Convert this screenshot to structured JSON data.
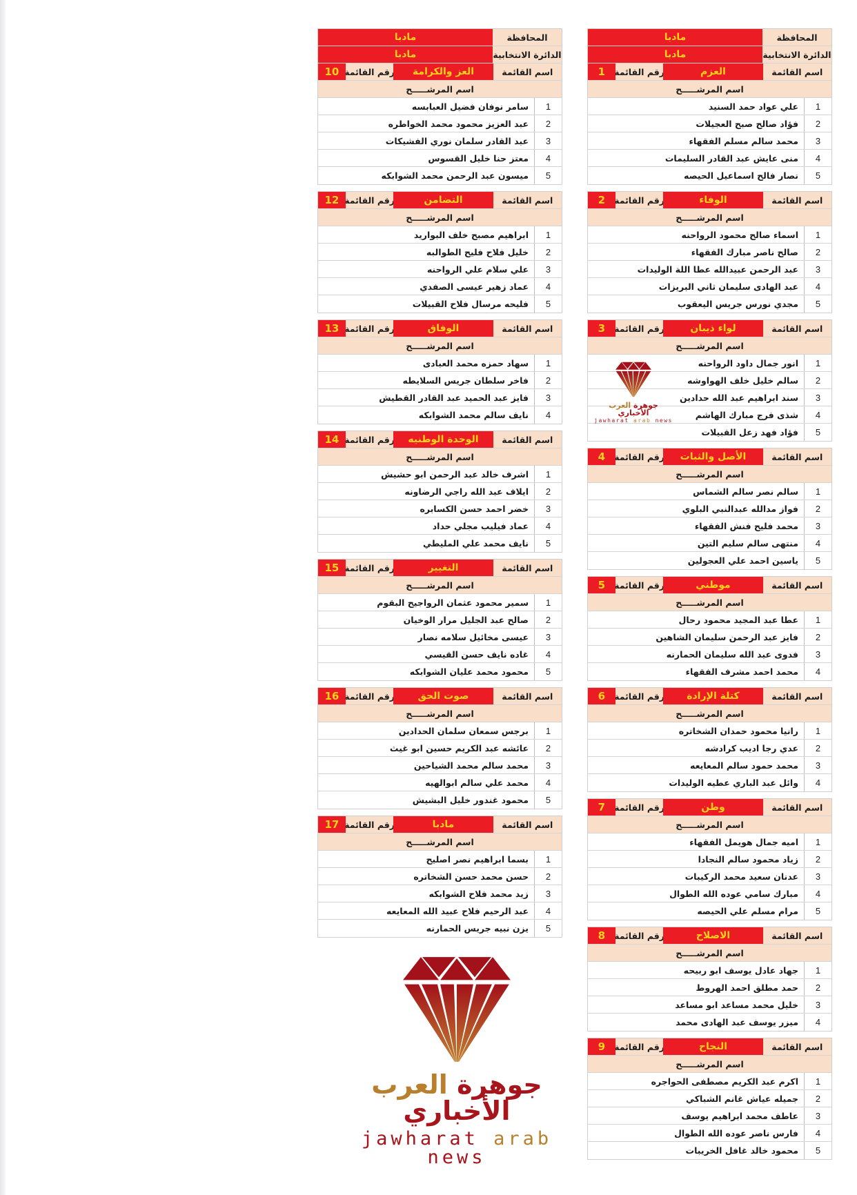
{
  "labels": {
    "province_label": "المحافظة",
    "district_label": "الدائرة الانتخابية",
    "list_name_label": "اسم القائمة",
    "list_number_label": "رقم القائمة",
    "candidate_header": "اسم المرشـــــح"
  },
  "province": "مادبا",
  "district": "مادبا",
  "colors": {
    "header_red": "#ec1c24",
    "header_text_yellow": "#ffd21a",
    "label_beige": "#f9dfc9",
    "logo_red": "#a8141b",
    "logo_gold": "#b8802c"
  },
  "logo": {
    "arabic_part1": "جوهرة",
    "arabic_part2": "العرب",
    "arabic_part3": "الأخباري",
    "english_part1": "jawharat",
    "english_part2": "arab",
    "english_part3": "news",
    "icon": "diamond-icon"
  },
  "right_column": [
    {
      "number": "1",
      "name": "العزم",
      "show_province": true,
      "candidates": [
        "علي عواد حمد السنيد",
        "فؤاد صالح صبح العجيلات",
        "محمد سالم مسلم الفقهاء",
        "منى عايش عبد القادر السليمات",
        "نصار فالح اسماعيل الحيصه"
      ]
    },
    {
      "number": "2",
      "name": "الوفاء",
      "candidates": [
        "اسماء صالح محمود الرواحنه",
        "صالح ناصر مبارك الفقهاء",
        "عبد الرحمن عبيدالله عطا اللة الوليدات",
        "عبد الهادى سليمان ثاني البريزات",
        "مجدي نورس جريس اليعقوب"
      ]
    },
    {
      "number": "3",
      "name": "لواء ذيبان",
      "candidates": [
        "انور جمال داود الرواحنه",
        "سالم خليل خلف الهواوشه",
        "سند ابراهيم عبد الله حدادين",
        "شذى فرج مبارك الهاشم",
        "فؤاد فهد زعل القبيلات"
      ]
    },
    {
      "number": "4",
      "name": "الأصل والثبات",
      "candidates": [
        "سالم نصر سالم الشماس",
        "فواز مدالله عبدالنبي البلوي",
        "محمد فليح فنش الفقهاء",
        "منتهى سالم سليم التين",
        "ياسين احمد علي العجولين"
      ]
    },
    {
      "number": "5",
      "name": "موطني",
      "candidates": [
        "عطا عبد المجيد محمود رحال",
        "فايز عبد الرحمن سليمان الشاهين",
        "فدوى عبد الله سليمان الحمارنه",
        "محمد احمد مشرف الفقهاء"
      ]
    },
    {
      "number": "6",
      "name": "كتلة الإرادة",
      "candidates": [
        "رانيا محمود حمدان الشخاتره",
        "عدي رجا اديب كرادشه",
        "محمد حمود سالم المعايعه",
        "وائل عبد الباري عطيه الوليدات"
      ]
    },
    {
      "number": "7",
      "name": "وطن",
      "candidates": [
        "اميه جمال هويمل الفقهاء",
        "زياد محمود سالم النجادا",
        "عدنان سعيد محمد الركيبات",
        "مبارك سامي عوده الله الطوال",
        "مرام مسلم علي الحيصه"
      ]
    },
    {
      "number": "8",
      "name": "الاصلاح",
      "candidates": [
        "جهاد عادل يوسف ابو ربيحه",
        "حمد مطلق احمد الهروط",
        "خليل محمد مساعد ابو مساعد",
        "ميزر يوسف عبد الهادى محمد"
      ]
    },
    {
      "number": "9",
      "name": "النجاح",
      "candidates": [
        "اكرم عبد الكريم مصطفى الحواجره",
        "جميله عياش غانم الشباكي",
        "عاطف محمد ابراهيم يوسف",
        "فارس ناصر عوده الله الطوال",
        "محمود خالد غافل الخريبات"
      ]
    }
  ],
  "left_column": [
    {
      "number": "10",
      "name": "العز والكرامة",
      "show_province": true,
      "candidates": [
        "سامر نوفان فضيل العبابسه",
        "عبد العزيز محمود محمد الخواطره",
        "عبد القادر سلمان نوري الفشيكات",
        "معتز حنا خليل القسوس",
        "ميسون عبد الرحمن محمد الشوابكه"
      ]
    },
    {
      "number": "12",
      "name": "التضامن",
      "candidates": [
        "ابراهيم مصبح خلف البواريد",
        "خليل فلاح فليح الطوالبه",
        "علي سلام علي الرواحنه",
        "عماد زهير عيسى الصفدي",
        "فليحه مرسال فلاح القبيلات"
      ]
    },
    {
      "number": "13",
      "name": "الوفاق",
      "candidates": [
        "سهاد حمزه محمد العبادى",
        "فاخر سلطان جريس السلايطه",
        "فايز عبد الحميد عبد القادر القطيش",
        "نايف سالم محمد الشوابكه"
      ]
    },
    {
      "number": "14",
      "name": "الوحدة الوطنيه",
      "candidates": [
        "اشرف خالد عبد الرحمن ابو حشيش",
        "ايلاف عبد الله راجي الرضاونه",
        "خضر احمد حسن الكسابره",
        "عماد فيليب مجلي حداد",
        "نايف محمد علي المليطي"
      ]
    },
    {
      "number": "15",
      "name": "التغيير",
      "candidates": [
        "سمير محمود عثمان الرواجيح البقوم",
        "صالح عبد الجليل مرار الوخيان",
        "عيسى مخائيل سلامه نصار",
        "غاده نايف حسن القيسي",
        "محمود محمد عليان الشوابكه"
      ]
    },
    {
      "number": "16",
      "name": "صوت الحق",
      "candidates": [
        "برجس سمعان سلمان الحدادين",
        "عائشه عبد الكريم حسين ابو غيث",
        "محمد سالم محمد الشياحين",
        "محمد علي سالم ابوالهيه",
        "محمود غندور خليل البشيش"
      ]
    },
    {
      "number": "17",
      "name": "مادبا",
      "candidates": [
        "بسما ابراهيم نصر اصليح",
        "حسن محمد حسن الشخاتره",
        "زيد محمد فلاح الشوابكه",
        "عبد الرحيم فلاح عبيد الله المعايعه",
        "يزن نبيه جريس الحمارنه"
      ]
    }
  ]
}
